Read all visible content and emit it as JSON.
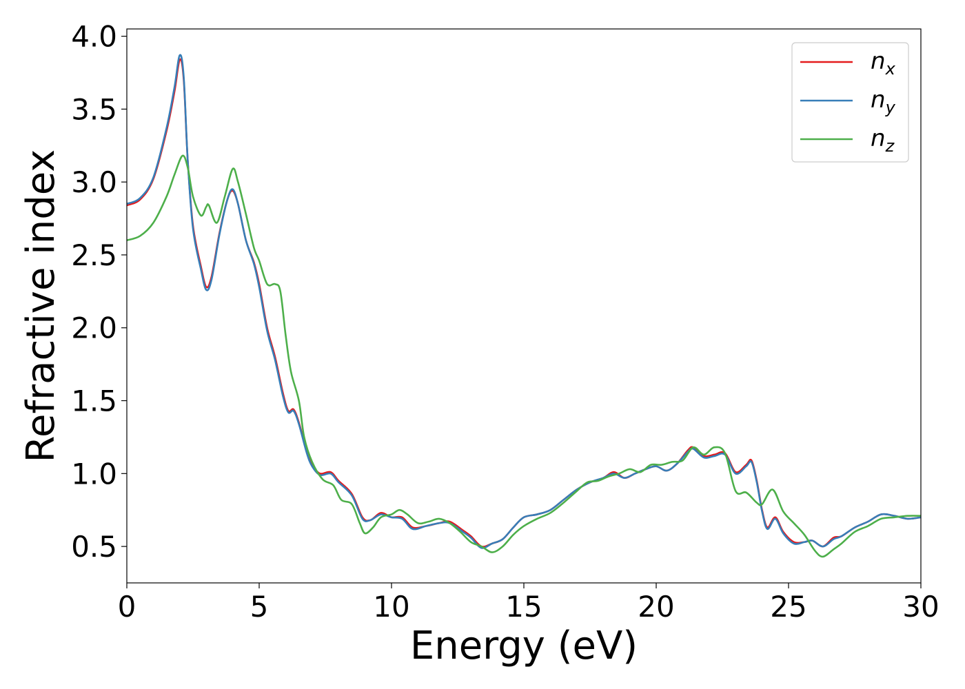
{
  "chart_data": {
    "type": "line",
    "xlabel": "Energy (eV)",
    "ylabel": "Refractive index",
    "xlim": [
      0,
      30
    ],
    "ylim": [
      0.25,
      4.05
    ],
    "xticks": [
      "0",
      "5",
      "10",
      "15",
      "20",
      "25",
      "30"
    ],
    "yticks": [
      "0.5",
      "1.0",
      "1.5",
      "2.0",
      "2.5",
      "3.0",
      "3.5",
      "4.0"
    ],
    "grid": false,
    "legend_position": "top-right",
    "series": [
      {
        "name": "n_x",
        "symbol": "n",
        "subscript": "x",
        "color": "#e41a1c",
        "points": [
          [
            0,
            2.84
          ],
          [
            0.5,
            2.88
          ],
          [
            1.0,
            3.02
          ],
          [
            1.5,
            3.35
          ],
          [
            1.8,
            3.62
          ],
          [
            2.0,
            3.84
          ],
          [
            2.15,
            3.7
          ],
          [
            2.3,
            3.15
          ],
          [
            2.5,
            2.7
          ],
          [
            2.8,
            2.42
          ],
          [
            3.0,
            2.28
          ],
          [
            3.2,
            2.35
          ],
          [
            3.5,
            2.65
          ],
          [
            3.8,
            2.88
          ],
          [
            4.0,
            2.94
          ],
          [
            4.2,
            2.85
          ],
          [
            4.5,
            2.6
          ],
          [
            4.8,
            2.45
          ],
          [
            5.0,
            2.3
          ],
          [
            5.3,
            2.0
          ],
          [
            5.6,
            1.8
          ],
          [
            5.9,
            1.55
          ],
          [
            6.1,
            1.43
          ],
          [
            6.3,
            1.44
          ],
          [
            6.5,
            1.35
          ],
          [
            6.8,
            1.15
          ],
          [
            7.0,
            1.06
          ],
          [
            7.3,
            1.0
          ],
          [
            7.7,
            1.01
          ],
          [
            8.0,
            0.95
          ],
          [
            8.5,
            0.86
          ],
          [
            8.9,
            0.7
          ],
          [
            9.2,
            0.68
          ],
          [
            9.6,
            0.73
          ],
          [
            10.0,
            0.7
          ],
          [
            10.4,
            0.7
          ],
          [
            10.8,
            0.63
          ],
          [
            11.3,
            0.64
          ],
          [
            11.8,
            0.66
          ],
          [
            12.2,
            0.67
          ],
          [
            12.7,
            0.61
          ],
          [
            13.0,
            0.57
          ],
          [
            13.4,
            0.5
          ],
          [
            13.8,
            0.52
          ],
          [
            14.2,
            0.55
          ],
          [
            14.6,
            0.63
          ],
          [
            15.0,
            0.7
          ],
          [
            15.5,
            0.72
          ],
          [
            16.0,
            0.75
          ],
          [
            16.5,
            0.82
          ],
          [
            17.0,
            0.89
          ],
          [
            17.5,
            0.94
          ],
          [
            18.0,
            0.97
          ],
          [
            18.4,
            1.01
          ],
          [
            18.8,
            0.97
          ],
          [
            19.2,
            1.0
          ],
          [
            19.6,
            1.03
          ],
          [
            20.0,
            1.05
          ],
          [
            20.4,
            1.02
          ],
          [
            20.8,
            1.07
          ],
          [
            21.2,
            1.16
          ],
          [
            21.4,
            1.18
          ],
          [
            21.8,
            1.12
          ],
          [
            22.2,
            1.13
          ],
          [
            22.6,
            1.14
          ],
          [
            23.0,
            1.01
          ],
          [
            23.4,
            1.06
          ],
          [
            23.6,
            1.09
          ],
          [
            23.8,
            0.95
          ],
          [
            24.0,
            0.75
          ],
          [
            24.2,
            0.63
          ],
          [
            24.5,
            0.7
          ],
          [
            24.8,
            0.6
          ],
          [
            25.2,
            0.53
          ],
          [
            25.6,
            0.53
          ],
          [
            25.9,
            0.54
          ],
          [
            26.3,
            0.5
          ],
          [
            26.7,
            0.56
          ],
          [
            27.0,
            0.57
          ],
          [
            27.5,
            0.63
          ],
          [
            28.0,
            0.67
          ],
          [
            28.5,
            0.72
          ],
          [
            29.0,
            0.71
          ],
          [
            29.5,
            0.69
          ],
          [
            30.0,
            0.7
          ]
        ]
      },
      {
        "name": "n_y",
        "symbol": "n",
        "subscript": "y",
        "color": "#377eb8",
        "points": [
          [
            0,
            2.85
          ],
          [
            0.5,
            2.89
          ],
          [
            1.0,
            3.03
          ],
          [
            1.5,
            3.37
          ],
          [
            1.8,
            3.65
          ],
          [
            2.0,
            3.87
          ],
          [
            2.15,
            3.72
          ],
          [
            2.3,
            3.15
          ],
          [
            2.5,
            2.68
          ],
          [
            2.8,
            2.4
          ],
          [
            3.0,
            2.26
          ],
          [
            3.2,
            2.33
          ],
          [
            3.5,
            2.64
          ],
          [
            3.8,
            2.88
          ],
          [
            4.0,
            2.95
          ],
          [
            4.2,
            2.85
          ],
          [
            4.5,
            2.6
          ],
          [
            4.8,
            2.44
          ],
          [
            5.0,
            2.28
          ],
          [
            5.3,
            1.98
          ],
          [
            5.6,
            1.78
          ],
          [
            5.9,
            1.53
          ],
          [
            6.1,
            1.42
          ],
          [
            6.3,
            1.43
          ],
          [
            6.5,
            1.34
          ],
          [
            6.8,
            1.14
          ],
          [
            7.0,
            1.05
          ],
          [
            7.3,
            0.99
          ],
          [
            7.7,
            1.0
          ],
          [
            8.0,
            0.94
          ],
          [
            8.5,
            0.85
          ],
          [
            8.9,
            0.69
          ],
          [
            9.2,
            0.68
          ],
          [
            9.6,
            0.72
          ],
          [
            10.0,
            0.7
          ],
          [
            10.4,
            0.69
          ],
          [
            10.8,
            0.62
          ],
          [
            11.3,
            0.64
          ],
          [
            11.8,
            0.66
          ],
          [
            12.2,
            0.66
          ],
          [
            12.7,
            0.6
          ],
          [
            13.0,
            0.56
          ],
          [
            13.4,
            0.49
          ],
          [
            13.8,
            0.52
          ],
          [
            14.2,
            0.55
          ],
          [
            14.6,
            0.63
          ],
          [
            15.0,
            0.7
          ],
          [
            15.5,
            0.72
          ],
          [
            16.0,
            0.75
          ],
          [
            16.5,
            0.82
          ],
          [
            17.0,
            0.89
          ],
          [
            17.5,
            0.94
          ],
          [
            18.0,
            0.97
          ],
          [
            18.4,
            1.0
          ],
          [
            18.8,
            0.97
          ],
          [
            19.2,
            1.0
          ],
          [
            19.6,
            1.03
          ],
          [
            20.0,
            1.05
          ],
          [
            20.4,
            1.02
          ],
          [
            20.8,
            1.07
          ],
          [
            21.2,
            1.15
          ],
          [
            21.4,
            1.17
          ],
          [
            21.8,
            1.11
          ],
          [
            22.2,
            1.12
          ],
          [
            22.6,
            1.13
          ],
          [
            23.0,
            1.0
          ],
          [
            23.4,
            1.05
          ],
          [
            23.6,
            1.08
          ],
          [
            23.8,
            0.94
          ],
          [
            24.0,
            0.74
          ],
          [
            24.2,
            0.62
          ],
          [
            24.5,
            0.69
          ],
          [
            24.8,
            0.59
          ],
          [
            25.2,
            0.52
          ],
          [
            25.6,
            0.53
          ],
          [
            25.9,
            0.54
          ],
          [
            26.3,
            0.5
          ],
          [
            26.7,
            0.55
          ],
          [
            27.0,
            0.57
          ],
          [
            27.5,
            0.63
          ],
          [
            28.0,
            0.67
          ],
          [
            28.5,
            0.72
          ],
          [
            29.0,
            0.71
          ],
          [
            29.5,
            0.69
          ],
          [
            30.0,
            0.7
          ]
        ]
      },
      {
        "name": "n_z",
        "symbol": "n",
        "subscript": "z",
        "color": "#4daf4a",
        "points": [
          [
            0,
            2.6
          ],
          [
            0.5,
            2.63
          ],
          [
            1.0,
            2.72
          ],
          [
            1.5,
            2.9
          ],
          [
            1.8,
            3.05
          ],
          [
            2.1,
            3.18
          ],
          [
            2.3,
            3.1
          ],
          [
            2.5,
            2.9
          ],
          [
            2.8,
            2.77
          ],
          [
            3.0,
            2.83
          ],
          [
            3.1,
            2.84
          ],
          [
            3.4,
            2.72
          ],
          [
            3.7,
            2.9
          ],
          [
            4.0,
            3.09
          ],
          [
            4.2,
            3.0
          ],
          [
            4.5,
            2.78
          ],
          [
            4.8,
            2.55
          ],
          [
            5.0,
            2.46
          ],
          [
            5.3,
            2.3
          ],
          [
            5.6,
            2.3
          ],
          [
            5.8,
            2.25
          ],
          [
            6.0,
            1.95
          ],
          [
            6.2,
            1.7
          ],
          [
            6.5,
            1.5
          ],
          [
            6.7,
            1.25
          ],
          [
            7.0,
            1.08
          ],
          [
            7.4,
            0.96
          ],
          [
            7.8,
            0.92
          ],
          [
            8.1,
            0.82
          ],
          [
            8.5,
            0.79
          ],
          [
            8.8,
            0.66
          ],
          [
            9.0,
            0.59
          ],
          [
            9.3,
            0.63
          ],
          [
            9.6,
            0.7
          ],
          [
            10.0,
            0.72
          ],
          [
            10.3,
            0.75
          ],
          [
            10.6,
            0.72
          ],
          [
            11.0,
            0.66
          ],
          [
            11.4,
            0.67
          ],
          [
            11.8,
            0.69
          ],
          [
            12.2,
            0.66
          ],
          [
            12.6,
            0.6
          ],
          [
            13.0,
            0.53
          ],
          [
            13.4,
            0.5
          ],
          [
            13.8,
            0.46
          ],
          [
            14.2,
            0.5
          ],
          [
            14.6,
            0.58
          ],
          [
            15.0,
            0.64
          ],
          [
            15.5,
            0.69
          ],
          [
            16.0,
            0.73
          ],
          [
            16.5,
            0.8
          ],
          [
            17.0,
            0.88
          ],
          [
            17.4,
            0.94
          ],
          [
            17.8,
            0.95
          ],
          [
            18.2,
            0.98
          ],
          [
            18.6,
            1.0
          ],
          [
            19.0,
            1.03
          ],
          [
            19.4,
            1.01
          ],
          [
            19.8,
            1.06
          ],
          [
            20.2,
            1.06
          ],
          [
            20.6,
            1.08
          ],
          [
            21.0,
            1.09
          ],
          [
            21.4,
            1.18
          ],
          [
            21.8,
            1.13
          ],
          [
            22.2,
            1.18
          ],
          [
            22.6,
            1.14
          ],
          [
            23.0,
            0.88
          ],
          [
            23.4,
            0.87
          ],
          [
            23.8,
            0.8
          ],
          [
            24.0,
            0.79
          ],
          [
            24.4,
            0.89
          ],
          [
            24.8,
            0.74
          ],
          [
            25.2,
            0.66
          ],
          [
            25.6,
            0.58
          ],
          [
            26.0,
            0.47
          ],
          [
            26.3,
            0.43
          ],
          [
            26.7,
            0.48
          ],
          [
            27.0,
            0.52
          ],
          [
            27.5,
            0.6
          ],
          [
            28.0,
            0.64
          ],
          [
            28.5,
            0.69
          ],
          [
            29.0,
            0.7
          ],
          [
            29.5,
            0.71
          ],
          [
            30.0,
            0.71
          ]
        ]
      }
    ]
  }
}
